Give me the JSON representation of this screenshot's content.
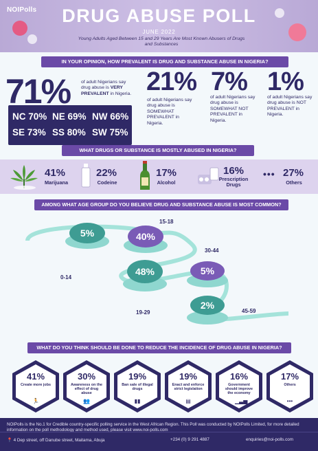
{
  "header": {
    "logo": "NOIPolls",
    "title": "DRUG ABUSE POLL",
    "date": "JUNE 2022",
    "subtitle": "Young Adults Aged Between 15 and 29 Years Are Most Known Abusers of Drugs and Substances"
  },
  "q1": {
    "question": "IN YOUR OPINION, HOW PREVALENT IS DRUG AND SUBSTANCE ABUSE IN NIGERIA?",
    "main_pct": "71%",
    "main_text_a": "of adult Nigerians say drug abuse is",
    "main_text_b": "VERY PREVALENT",
    "main_text_c": "in Nigeria.",
    "regions": [
      {
        "label": "NC 70%"
      },
      {
        "label": "NE 69%"
      },
      {
        "label": "NW 66%"
      },
      {
        "label": "SE 73%"
      },
      {
        "label": "SS 80%"
      },
      {
        "label": "SW 75%"
      }
    ],
    "stats": [
      {
        "pct": "21%",
        "text": "of adult Nigerians say drug abuse is SOMEWHAT PREVALENT in Nigeria."
      },
      {
        "pct": "7%",
        "text": "of adult Nigerians say drug abuse is SOMEWHAT NOT PREVALENT in Nigeria."
      },
      {
        "pct": "1%",
        "text": "of adult Nigerians say drug abuse is NOT PREVALENT in Nigeria."
      }
    ]
  },
  "q2": {
    "question": "WHAT DRUGS OR SUBSTANCE IS MOSTLY ABUSED IN NIGERIA?",
    "items": [
      {
        "pct": "41%",
        "label": "Marijuana",
        "icon": "marijuana-leaf-icon"
      },
      {
        "pct": "22%",
        "label": "Codeine",
        "icon": "codeine-bottle-icon"
      },
      {
        "pct": "17%",
        "label": "Alcohol",
        "icon": "alcohol-bottle-icon"
      },
      {
        "pct": "16%",
        "label": "Prescription Drugs",
        "icon": "pills-icon"
      },
      {
        "pct": "27%",
        "label": "Others",
        "icon": "dots-icon"
      }
    ]
  },
  "q3": {
    "question": "AMONG WHAT AGE GROUP DO YOU BELIEVE DRUG AND SUBSTANCE ABUSE IS MOST COMMON?",
    "groups": [
      {
        "age": "0-14",
        "pct": "5%",
        "value": 5
      },
      {
        "age": "15-18",
        "pct": "40%",
        "value": 40
      },
      {
        "age": "19-29",
        "pct": "48%",
        "value": 48
      },
      {
        "age": "30-44",
        "pct": "5%",
        "value": 5
      },
      {
        "age": "45-59",
        "pct": "2%",
        "value": 2
      }
    ]
  },
  "q4": {
    "question": "WHAT DO YOU THINK SHOULD BE DONE TO REDUCE THE INCIDENCE OF DRUG ABUSE IN NIGERIA?",
    "items": [
      {
        "pct": "41%",
        "label": "Create more jobs",
        "icon": "running-person-icon"
      },
      {
        "pct": "30%",
        "label": "Awareness on the effect of drug abuse",
        "icon": "people-icon"
      },
      {
        "pct": "19%",
        "label": "Ban sale of illegal drugs",
        "icon": "drug-bottles-icon"
      },
      {
        "pct": "19%",
        "label": "Enact and enforce strict legislation",
        "icon": "document-icon"
      },
      {
        "pct": "16%",
        "label": "Government should improve the economy",
        "icon": "growth-chart-icon"
      },
      {
        "pct": "17%",
        "label": "Others",
        "icon": "dots-icon"
      }
    ]
  },
  "footer": {
    "about": "NOIPolls is the No.1 for Credible country-specific polling service in the West African Region. This Poll was conducted by NOIPolls Limited, for more detailed information on the poll methodology and method used, please visit www.noi-polls.com",
    "address": "4 Dep street, off Danube street, Maitama, Abuja",
    "phone": "+234 (0) 9 291 4887",
    "email": "enquiries@noi-polls.com"
  },
  "colors": {
    "primary": "#2f2966",
    "accent": "#6b4aa7",
    "teal": "#3e9c93",
    "mint": "#8fd7cf",
    "lavender": "#ddd3ee"
  }
}
